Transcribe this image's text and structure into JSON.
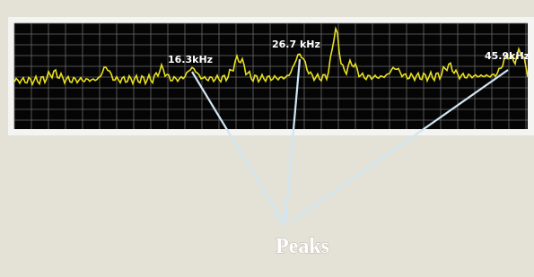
{
  "peak_labels": [
    "16.3kHz",
    "26.7 kHz",
    "45.9kHz"
  ],
  "caption": "Peaks"
}
